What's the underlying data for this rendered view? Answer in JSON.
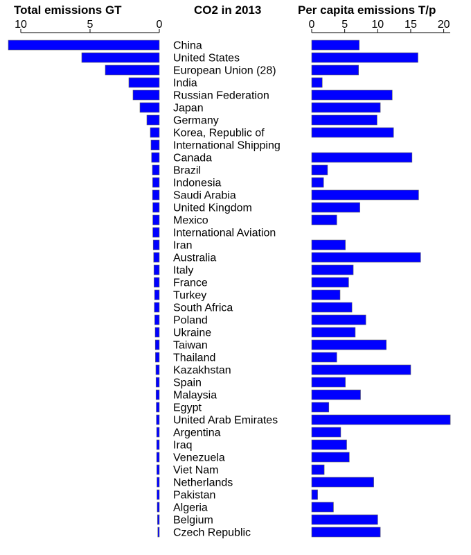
{
  "chart_data": {
    "type": "bar",
    "title": "CO2 in 2013",
    "orientation": "horizontal",
    "categories": [
      "China",
      "United States",
      "European Union (28)",
      "India",
      "Russian Federation",
      "Japan",
      "Germany",
      "Korea, Republic of",
      "International Shipping",
      "Canada",
      "Brazil",
      "Indonesia",
      "Saudi Arabia",
      "United Kingdom",
      "Mexico",
      "International Aviation",
      "Iran",
      "Australia",
      "Italy",
      "France",
      "Turkey",
      "South Africa",
      "Poland",
      "Ukraine",
      "Taiwan",
      "Thailand",
      "Kazakhstan",
      "Spain",
      "Malaysia",
      "Egypt",
      "United Arab Emirates",
      "Argentina",
      "Iraq",
      "Venezuela",
      "Viet Nam",
      "Netherlands",
      "Pakistan",
      "Algeria",
      "Belgium",
      "Czech Republic"
    ],
    "series": [
      {
        "name": "Total emissions GT",
        "tick_labels": [
          "10",
          "5",
          "0"
        ],
        "xlim": [
          11,
          0
        ],
        "values": [
          10.9,
          5.6,
          3.9,
          2.2,
          1.9,
          1.4,
          0.9,
          0.65,
          0.6,
          0.56,
          0.5,
          0.48,
          0.49,
          0.47,
          0.47,
          0.47,
          0.44,
          0.41,
          0.39,
          0.38,
          0.34,
          0.36,
          0.33,
          0.3,
          0.29,
          0.28,
          0.25,
          0.24,
          0.24,
          0.22,
          0.21,
          0.19,
          0.19,
          0.19,
          0.18,
          0.17,
          0.17,
          0.15,
          0.13,
          0.11
        ],
        "color": "#0000ff"
      },
      {
        "name": "Per capita emissions T/p",
        "tick_labels": [
          "0",
          "5",
          "10",
          "15",
          "20"
        ],
        "xlim": [
          0,
          21
        ],
        "values": [
          7.2,
          16.1,
          7.1,
          1.6,
          12.2,
          10.4,
          9.9,
          12.4,
          null,
          15.2,
          2.4,
          1.8,
          16.2,
          7.3,
          3.8,
          null,
          5.1,
          16.5,
          6.3,
          5.6,
          4.3,
          6.1,
          8.2,
          6.6,
          11.3,
          3.8,
          15.0,
          5.1,
          7.4,
          2.6,
          21.0,
          4.4,
          5.3,
          5.7,
          1.9,
          9.4,
          0.9,
          3.3,
          10.0,
          10.4
        ],
        "color": "#0000ff"
      }
    ],
    "grid": false,
    "legend": "none"
  }
}
